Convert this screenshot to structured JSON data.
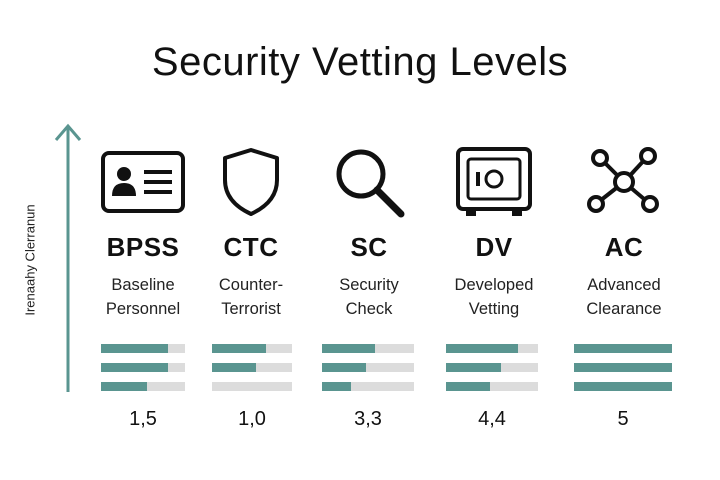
{
  "title": "Security Vetting Levels",
  "axis_label": "Irenaahy Clerranun",
  "colors": {
    "accent": "#5a9590",
    "track": "#dcdcdc",
    "ink": "#111111"
  },
  "levels": [
    {
      "code": "BPSS",
      "name_line1": "Baseline",
      "name_line2": "Personnel",
      "icon": "id-card-icon",
      "bars": [
        0.8,
        0.8,
        0.55
      ],
      "score": "1,5"
    },
    {
      "code": "CTC",
      "name_line1": "Counter-",
      "name_line2": "Terrorist",
      "icon": "shield-icon",
      "bars": [
        0.68,
        0.55,
        0
      ],
      "score": "1,0"
    },
    {
      "code": "SC",
      "name_line1": "Security",
      "name_line2": "Check",
      "icon": "magnifier-icon",
      "bars": [
        0.58,
        0.48,
        0.32
      ],
      "score": "3,3"
    },
    {
      "code": "DV",
      "name_line1": "Developed",
      "name_line2": "Vetting",
      "icon": "safe-icon",
      "bars": [
        0.78,
        0.6,
        0.48
      ],
      "score": "4,4"
    },
    {
      "code": "AC",
      "name_line1": "Advanced",
      "name_line2": "Clearance",
      "icon": "network-icon",
      "bars": [
        1,
        1,
        1
      ],
      "score": "5"
    }
  ]
}
